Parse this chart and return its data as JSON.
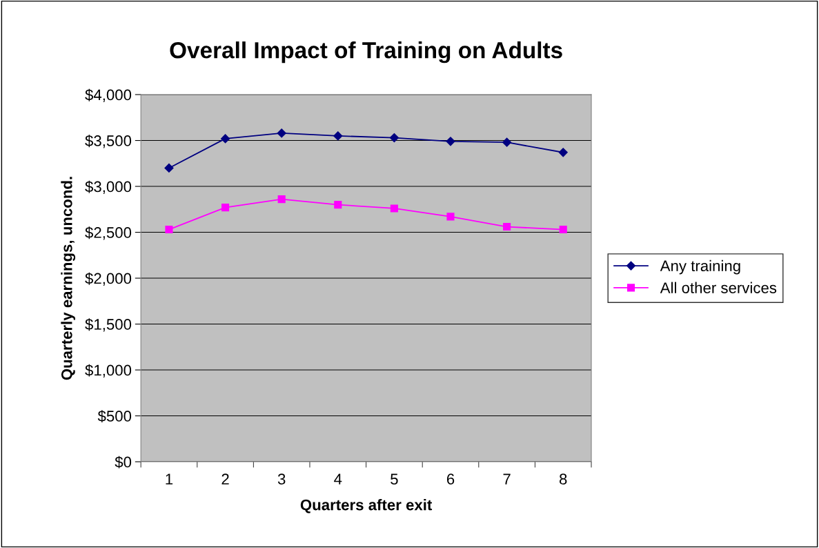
{
  "chart_data": {
    "type": "line",
    "title": "Overall Impact of Training on Adults",
    "xlabel": "Quarters after exit",
    "ylabel": "Quarterly earnings, uncond.",
    "categories": [
      "1",
      "2",
      "3",
      "4",
      "5",
      "6",
      "7",
      "8"
    ],
    "series": [
      {
        "name": "Any training",
        "color": "#000080",
        "marker": "diamond",
        "values": [
          3200,
          3520,
          3580,
          3550,
          3530,
          3490,
          3480,
          3370
        ]
      },
      {
        "name": "All other services",
        "color": "#ff00ff",
        "marker": "square",
        "values": [
          2530,
          2770,
          2860,
          2800,
          2760,
          2670,
          2560,
          2530
        ]
      }
    ],
    "ylim": [
      0,
      4000
    ],
    "yticks": [
      {
        "value": 0,
        "label": "$0"
      },
      {
        "value": 500,
        "label": "$500"
      },
      {
        "value": 1000,
        "label": "$1,000"
      },
      {
        "value": 1500,
        "label": "$1,500"
      },
      {
        "value": 2000,
        "label": "$2,000"
      },
      {
        "value": 2500,
        "label": "$2,500"
      },
      {
        "value": 3000,
        "label": "$3,000"
      },
      {
        "value": 3500,
        "label": "$3,500"
      },
      {
        "value": 4000,
        "label": "$4,000"
      }
    ],
    "grid": "y",
    "legend": "right",
    "line_style": "solid"
  }
}
